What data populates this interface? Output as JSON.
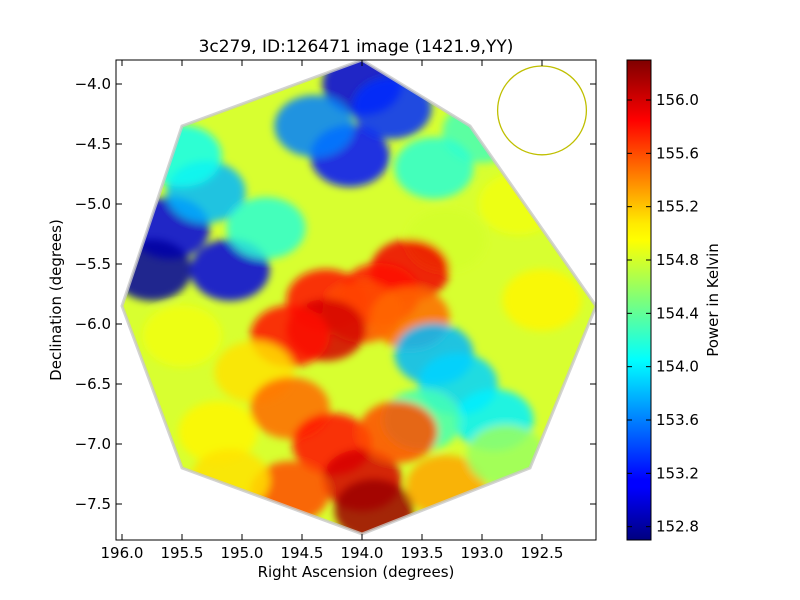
{
  "chart_data": {
    "type": "heatmap",
    "title": "3c279, ID:126471 image (1421.9,YY)",
    "xlabel": "Right Ascension (degrees)",
    "ylabel": "Declination (degrees)",
    "xlim": [
      196.05,
      192.05
    ],
    "ylim": [
      -7.8,
      -3.8
    ],
    "x_ticks": [
      196.0,
      195.5,
      195.0,
      194.5,
      194.0,
      193.5,
      193.0,
      192.5
    ],
    "x_tick_labels": [
      "196.0",
      "195.5",
      "195.0",
      "194.5",
      "194.0",
      "193.5",
      "193.0",
      "192.5"
    ],
    "y_ticks": [
      -4.0,
      -4.5,
      -5.0,
      -5.5,
      -6.0,
      -6.5,
      -7.0,
      -7.5
    ],
    "y_tick_labels": [
      "−4.0",
      "−4.5",
      "−5.0",
      "−5.5",
      "−6.0",
      "−6.5",
      "−7.0",
      "−7.5"
    ],
    "grid": false,
    "colormap": "jet",
    "colorbar": {
      "label": "Power in Kelvin",
      "range": [
        152.7,
        156.3
      ],
      "ticks": [
        152.8,
        153.2,
        153.6,
        154.0,
        154.4,
        154.8,
        155.2,
        155.6,
        156.0
      ],
      "tick_labels": [
        "152.8",
        "153.2",
        "153.6",
        "154.0",
        "154.4",
        "154.8",
        "155.2",
        "155.6",
        "156.0"
      ]
    },
    "field_outline": {
      "shape": "octagon",
      "vertices": [
        [
          194.0,
          -3.8
        ],
        [
          193.1,
          -4.35
        ],
        [
          192.05,
          -5.85
        ],
        [
          192.6,
          -7.2
        ],
        [
          194.0,
          -7.75
        ],
        [
          195.5,
          -7.2
        ],
        [
          196.0,
          -5.85
        ],
        [
          195.5,
          -4.35
        ]
      ]
    },
    "beam_circle": {
      "center": [
        192.5,
        -4.22
      ],
      "radius_deg": 0.37,
      "color": "#bfbf00"
    },
    "regions": [
      {
        "x": 194.0,
        "y": -4.0,
        "value": 153.0
      },
      {
        "x": 194.1,
        "y": -4.6,
        "value": 153.2
      },
      {
        "x": 193.75,
        "y": -4.2,
        "value": 153.3
      },
      {
        "x": 194.4,
        "y": -4.35,
        "value": 153.6
      },
      {
        "x": 195.6,
        "y": -5.2,
        "value": 153.0
      },
      {
        "x": 195.75,
        "y": -5.55,
        "value": 152.8
      },
      {
        "x": 195.1,
        "y": -5.55,
        "value": 153.0
      },
      {
        "x": 195.3,
        "y": -4.9,
        "value": 153.8
      },
      {
        "x": 194.8,
        "y": -5.2,
        "value": 154.2
      },
      {
        "x": 195.5,
        "y": -4.6,
        "value": 154.1
      },
      {
        "x": 193.0,
        "y": -4.4,
        "value": 154.3
      },
      {
        "x": 193.4,
        "y": -4.7,
        "value": 154.2
      },
      {
        "x": 192.7,
        "y": -5.0,
        "value": 154.9
      },
      {
        "x": 192.5,
        "y": -5.8,
        "value": 155.0
      },
      {
        "x": 193.3,
        "y": -5.3,
        "value": 154.8
      },
      {
        "x": 193.6,
        "y": -5.55,
        "value": 155.9
      },
      {
        "x": 193.85,
        "y": -5.75,
        "value": 155.8
      },
      {
        "x": 194.3,
        "y": -5.8,
        "value": 155.8
      },
      {
        "x": 194.0,
        "y": -5.9,
        "value": 155.6
      },
      {
        "x": 194.3,
        "y": -6.05,
        "value": 156.0
      },
      {
        "x": 194.6,
        "y": -6.1,
        "value": 155.8
      },
      {
        "x": 193.6,
        "y": -5.95,
        "value": 155.5
      },
      {
        "x": 193.4,
        "y": -6.25,
        "value": 153.8
      },
      {
        "x": 193.2,
        "y": -6.5,
        "value": 153.9
      },
      {
        "x": 192.9,
        "y": -6.8,
        "value": 154.0
      },
      {
        "x": 193.5,
        "y": -6.8,
        "value": 154.3
      },
      {
        "x": 195.5,
        "y": -6.1,
        "value": 154.9
      },
      {
        "x": 195.2,
        "y": -6.9,
        "value": 155.0
      },
      {
        "x": 194.9,
        "y": -6.4,
        "value": 155.1
      },
      {
        "x": 194.6,
        "y": -6.7,
        "value": 155.5
      },
      {
        "x": 194.25,
        "y": -7.0,
        "value": 155.8
      },
      {
        "x": 194.0,
        "y": -7.3,
        "value": 156.0
      },
      {
        "x": 193.9,
        "y": -7.55,
        "value": 156.2
      },
      {
        "x": 193.7,
        "y": -6.9,
        "value": 155.6
      },
      {
        "x": 193.3,
        "y": -7.35,
        "value": 155.3
      },
      {
        "x": 194.6,
        "y": -7.4,
        "value": 155.6
      },
      {
        "x": 195.1,
        "y": -7.3,
        "value": 155.1
      },
      {
        "x": 192.8,
        "y": -7.1,
        "value": 154.6
      }
    ]
  }
}
